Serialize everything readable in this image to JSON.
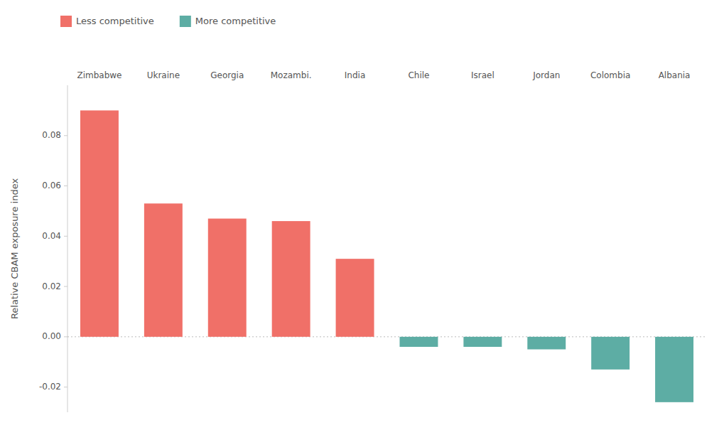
{
  "chart_data": {
    "type": "bar",
    "y_label": "Relative CBAM exposure index",
    "categories": [
      "Zimbabwe",
      "Ukraine",
      "Georgia",
      "Mozambi.",
      "India",
      "Chile",
      "Israel",
      "Jordan",
      "Colombia",
      "Albania"
    ],
    "series": [
      {
        "name": "Less competitive",
        "color": "#F07068",
        "values": [
          0.09,
          0.053,
          0.047,
          0.046,
          0.031,
          null,
          null,
          null,
          null,
          null
        ]
      },
      {
        "name": "More competitive",
        "color": "#5DADA4",
        "values": [
          null,
          null,
          null,
          null,
          null,
          -0.004,
          -0.004,
          -0.005,
          -0.013,
          -0.026
        ]
      }
    ],
    "stacked": true,
    "ylim": [
      -0.03,
      0.1
    ],
    "yticks": [
      -0.02,
      {
        "value": 0,
        "label": "0.00"
      },
      0.02,
      0.04,
      0.06,
      0.08
    ],
    "grid": false,
    "legend": "upper left"
  }
}
